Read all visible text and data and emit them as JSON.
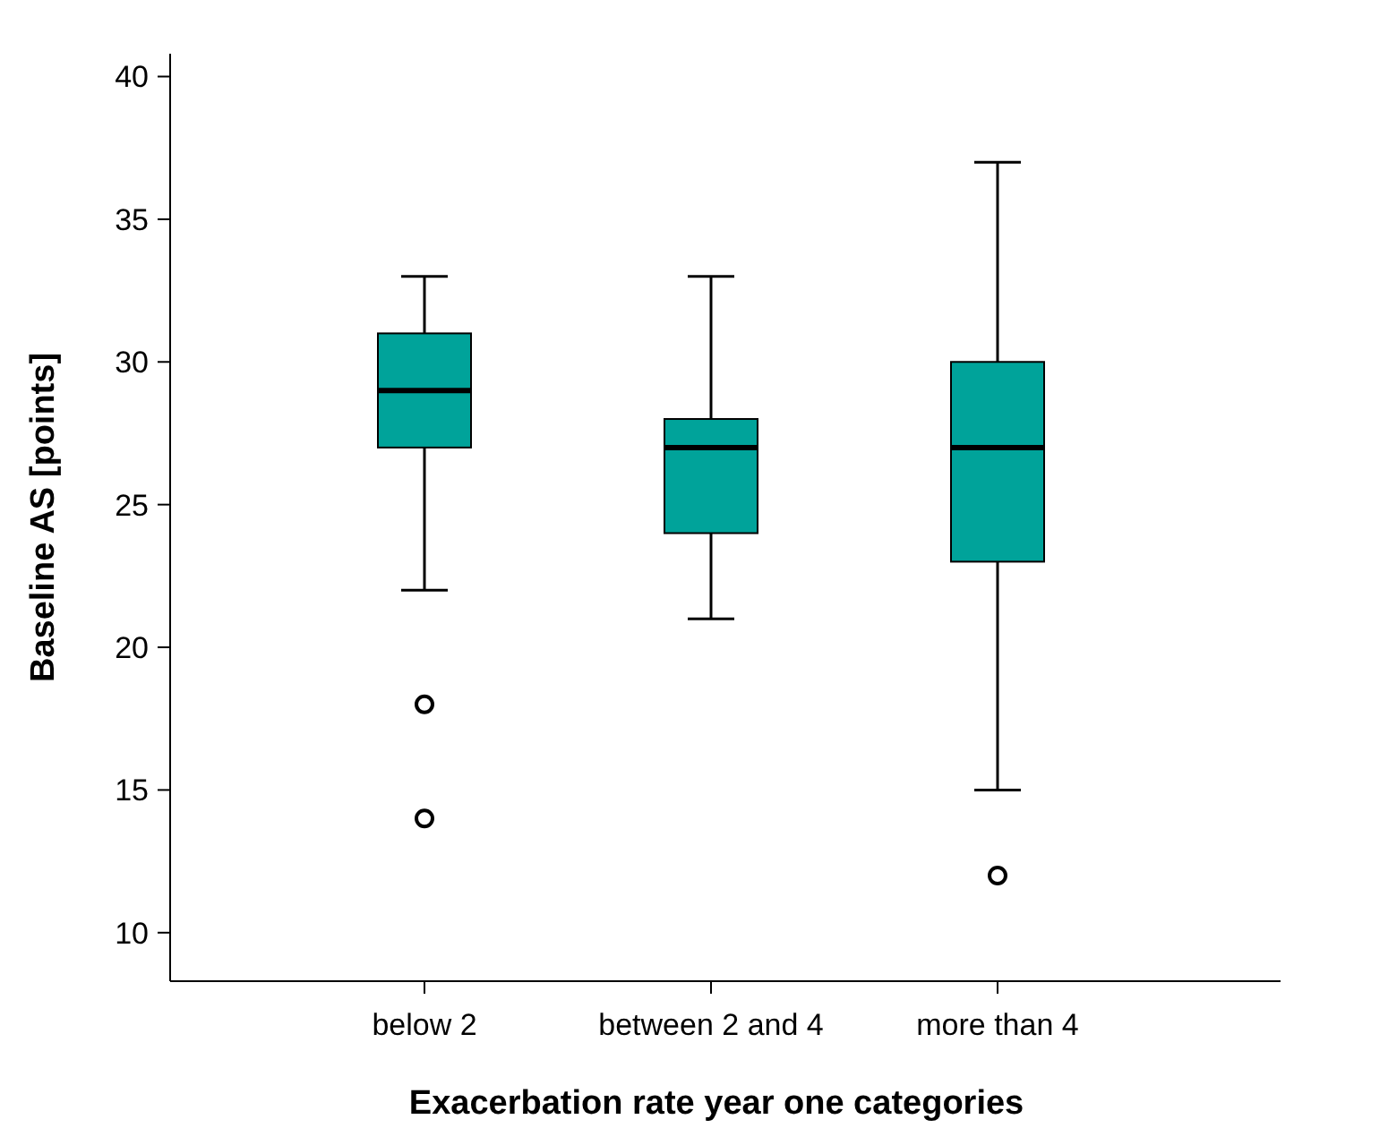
{
  "chart_data": {
    "type": "box",
    "xlabel": "Exacerbation rate year one categories",
    "ylabel": "Baseline AS [points]",
    "categories": [
      "below 2",
      "between 2 and 4",
      "more than 4"
    ],
    "color": "#00a39a",
    "boxes": [
      {
        "low": 22,
        "q1": 27,
        "median": 29,
        "q3": 31,
        "high": 33,
        "outliers": [
          18,
          14
        ]
      },
      {
        "low": 21,
        "q1": 24,
        "median": 27,
        "q3": 28,
        "high": 33
      },
      {
        "low": 15,
        "q1": 23,
        "median": 27,
        "q3": 30,
        "high": 37,
        "outliers": [
          12
        ]
      }
    ],
    "ylim": [
      8.3,
      40.8
    ],
    "yticks": [
      10,
      15,
      20,
      25,
      30,
      35,
      40
    ]
  }
}
